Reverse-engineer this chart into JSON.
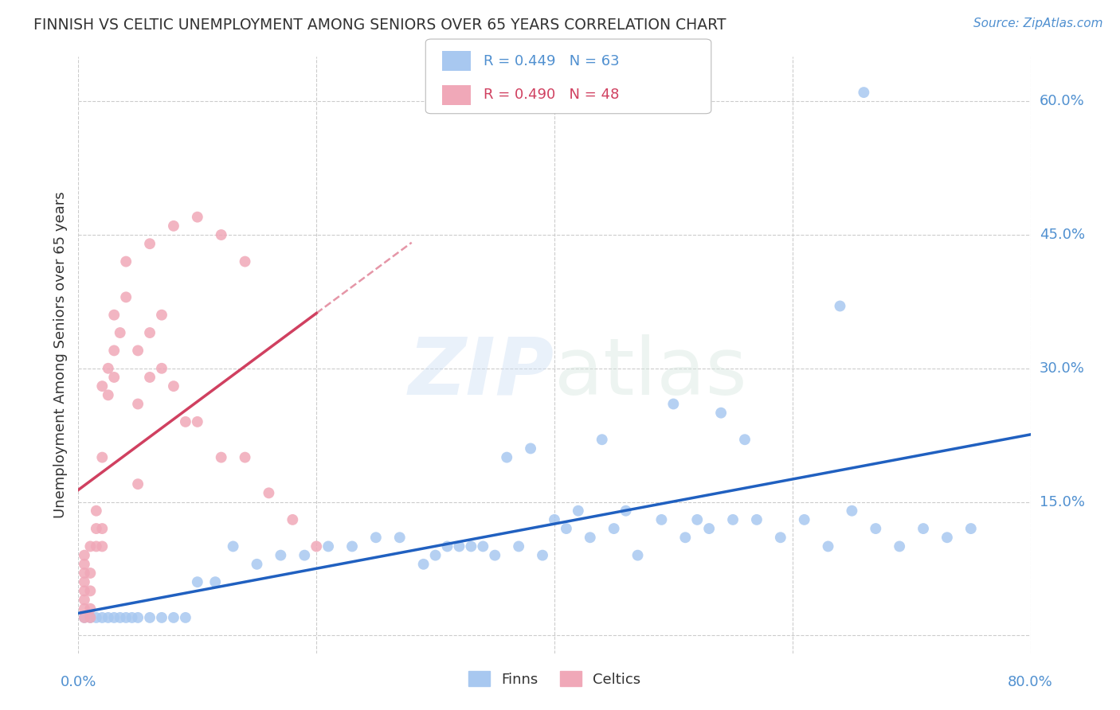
{
  "title": "FINNISH VS CELTIC UNEMPLOYMENT AMONG SENIORS OVER 65 YEARS CORRELATION CHART",
  "source": "Source: ZipAtlas.com",
  "ylabel": "Unemployment Among Seniors over 65 years",
  "xlim": [
    0.0,
    0.8
  ],
  "ylim": [
    -0.02,
    0.65
  ],
  "yticks": [
    0.0,
    0.15,
    0.3,
    0.45,
    0.6
  ],
  "xticks": [
    0.0,
    0.2,
    0.4,
    0.6,
    0.8
  ],
  "yticklabels": [
    "",
    "15.0%",
    "30.0%",
    "45.0%",
    "60.0%"
  ],
  "xticklabels": [
    "0.0%",
    "",
    "",
    "",
    "80.0%"
  ],
  "legend_labels": [
    "Finns",
    "Celtics"
  ],
  "finns_color": "#a8c8f0",
  "celtics_color": "#f0a8b8",
  "finns_line_color": "#2060c0",
  "celtics_line_color": "#d04060",
  "finns_r": 0.449,
  "finns_n": 63,
  "celtics_r": 0.49,
  "celtics_n": 48,
  "watermark_zip": "ZIP",
  "watermark_atlas": "atlas",
  "background_color": "#ffffff",
  "grid_color": "#cccccc",
  "axis_color": "#5090d0",
  "title_color": "#333333",
  "finns_x": [
    0.005,
    0.01,
    0.015,
    0.02,
    0.025,
    0.03,
    0.035,
    0.04,
    0.045,
    0.05,
    0.06,
    0.07,
    0.08,
    0.09,
    0.1,
    0.115,
    0.13,
    0.15,
    0.17,
    0.19,
    0.21,
    0.23,
    0.25,
    0.27,
    0.29,
    0.31,
    0.33,
    0.35,
    0.37,
    0.39,
    0.41,
    0.43,
    0.45,
    0.47,
    0.49,
    0.51,
    0.53,
    0.55,
    0.57,
    0.59,
    0.61,
    0.63,
    0.65,
    0.67,
    0.69,
    0.71,
    0.73,
    0.75,
    0.3,
    0.32,
    0.34,
    0.36,
    0.38,
    0.4,
    0.42,
    0.44,
    0.46,
    0.5,
    0.52,
    0.54,
    0.56,
    0.64,
    0.66
  ],
  "finns_y": [
    0.02,
    0.02,
    0.02,
    0.02,
    0.02,
    0.02,
    0.02,
    0.02,
    0.02,
    0.02,
    0.02,
    0.02,
    0.02,
    0.02,
    0.06,
    0.06,
    0.1,
    0.08,
    0.09,
    0.09,
    0.1,
    0.1,
    0.11,
    0.11,
    0.08,
    0.1,
    0.1,
    0.09,
    0.1,
    0.09,
    0.12,
    0.11,
    0.12,
    0.09,
    0.13,
    0.11,
    0.12,
    0.13,
    0.13,
    0.11,
    0.13,
    0.1,
    0.14,
    0.12,
    0.1,
    0.12,
    0.11,
    0.12,
    0.09,
    0.1,
    0.1,
    0.2,
    0.21,
    0.13,
    0.14,
    0.22,
    0.14,
    0.26,
    0.13,
    0.25,
    0.22,
    0.37,
    0.61
  ],
  "celtics_x": [
    0.005,
    0.005,
    0.005,
    0.005,
    0.005,
    0.005,
    0.005,
    0.005,
    0.01,
    0.01,
    0.01,
    0.01,
    0.01,
    0.015,
    0.015,
    0.015,
    0.02,
    0.02,
    0.02,
    0.02,
    0.025,
    0.025,
    0.03,
    0.03,
    0.03,
    0.035,
    0.04,
    0.04,
    0.05,
    0.05,
    0.05,
    0.06,
    0.06,
    0.07,
    0.07,
    0.08,
    0.09,
    0.1,
    0.12,
    0.14,
    0.16,
    0.18,
    0.2,
    0.06,
    0.08,
    0.1,
    0.12,
    0.14
  ],
  "celtics_y": [
    0.02,
    0.03,
    0.04,
    0.05,
    0.06,
    0.07,
    0.08,
    0.09,
    0.02,
    0.03,
    0.05,
    0.07,
    0.1,
    0.1,
    0.12,
    0.14,
    0.1,
    0.12,
    0.2,
    0.28,
    0.27,
    0.3,
    0.29,
    0.32,
    0.36,
    0.34,
    0.38,
    0.42,
    0.17,
    0.26,
    0.32,
    0.29,
    0.34,
    0.3,
    0.36,
    0.28,
    0.24,
    0.24,
    0.2,
    0.2,
    0.16,
    0.13,
    0.1,
    0.44,
    0.46,
    0.47,
    0.45,
    0.42
  ]
}
